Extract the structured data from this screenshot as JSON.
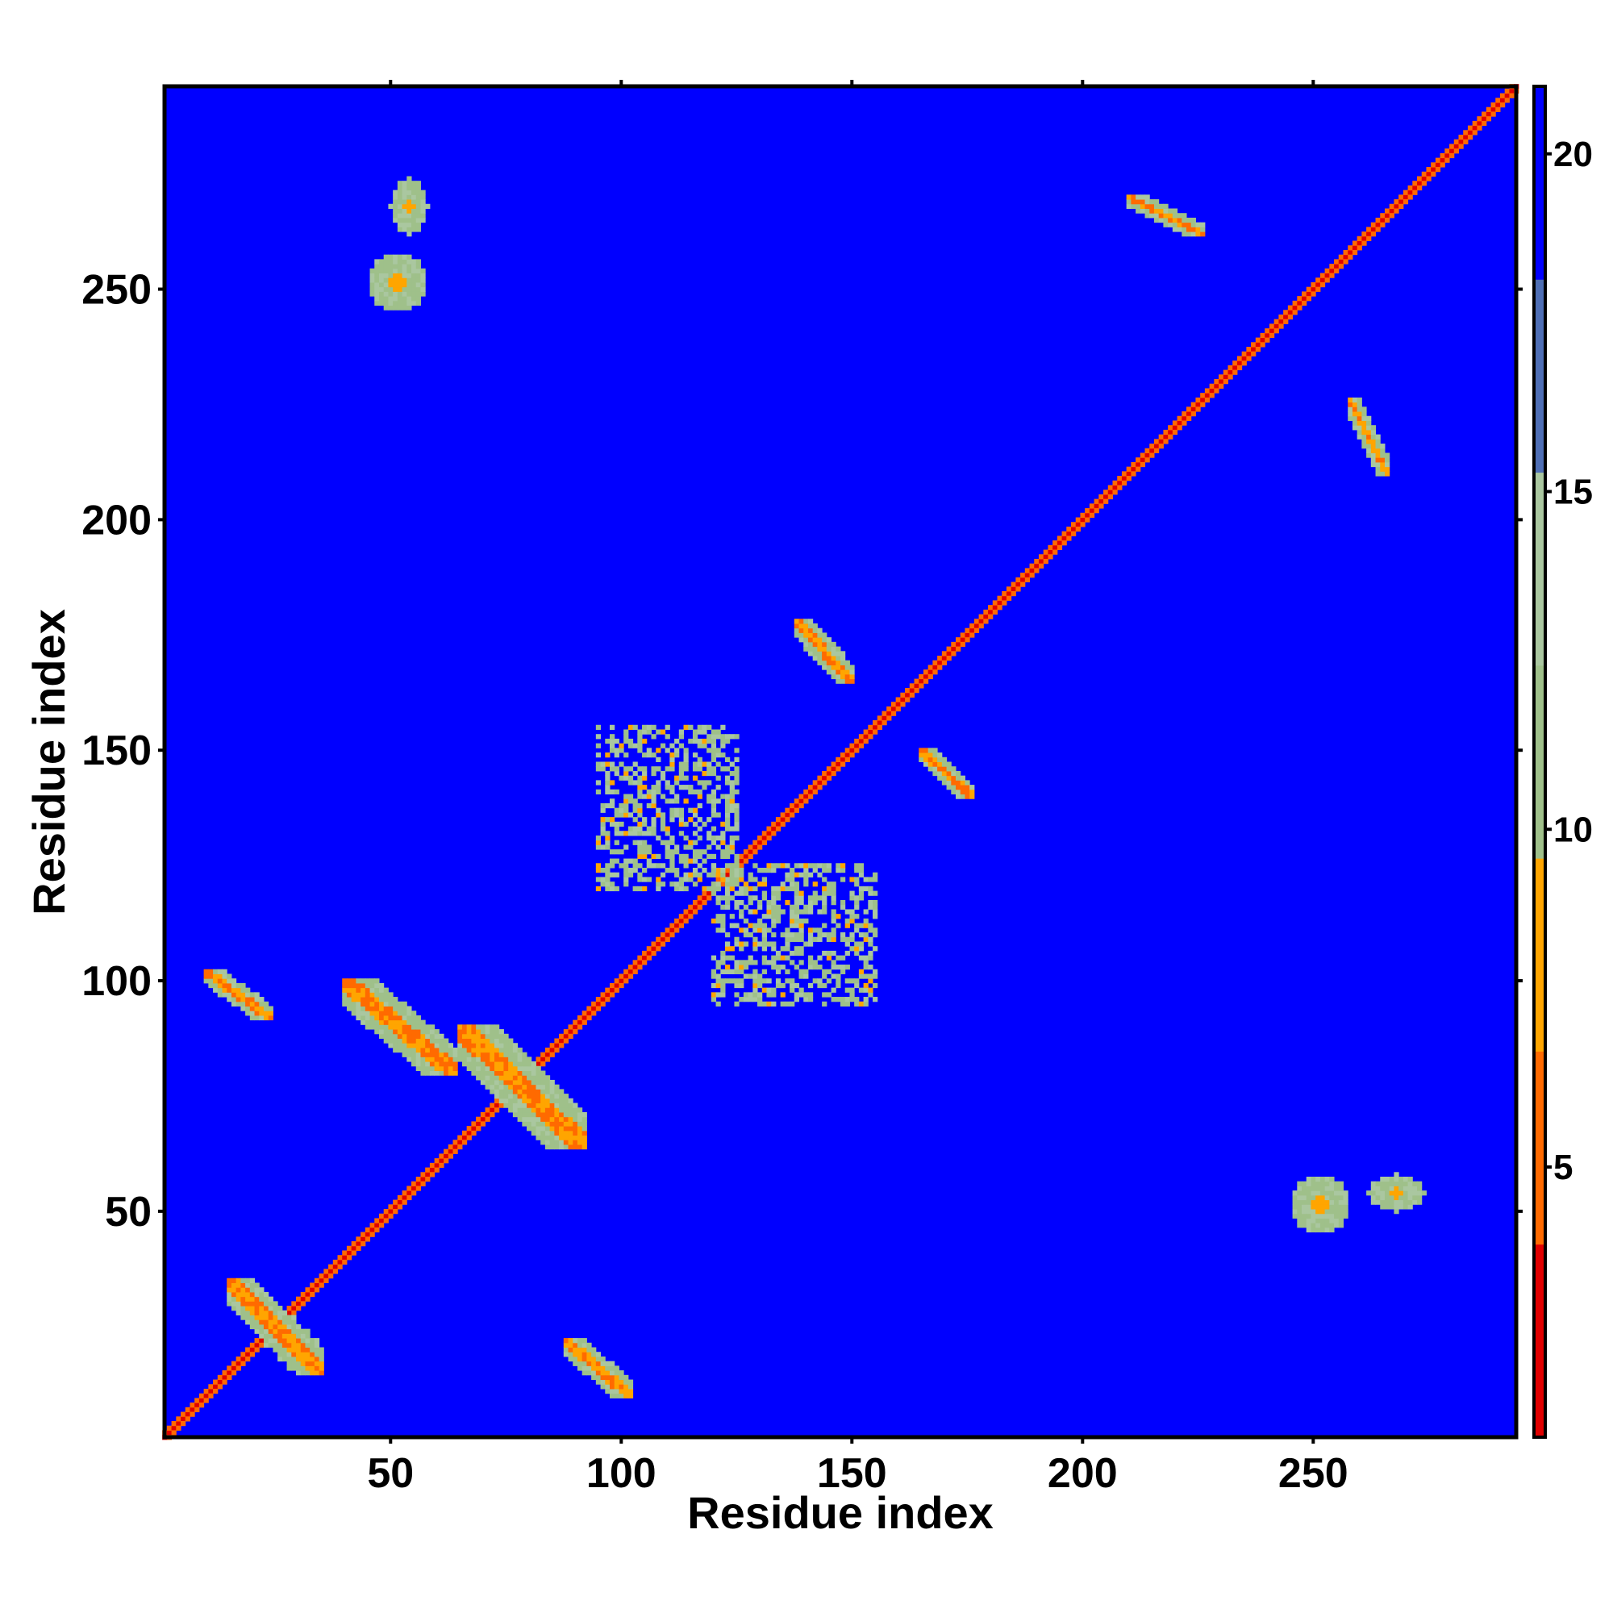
{
  "chart_data": {
    "type": "heatmap",
    "title": "",
    "xlabel": "Residue index",
    "ylabel": "Residue index",
    "xlim": [
      1,
      294
    ],
    "ylim": [
      1,
      294
    ],
    "x_ticks": [
      50,
      100,
      150,
      200,
      250
    ],
    "y_ticks": [
      50,
      100,
      150,
      200,
      250
    ],
    "colorbar": {
      "range": [
        1,
        21
      ],
      "ticks": [
        5,
        10,
        15,
        20
      ],
      "colors": [
        "#e00000",
        "#ff6a00",
        "#ffa500",
        "#9fc08a",
        "#aac7a0",
        "#4f6fb5",
        "#0000ff"
      ]
    },
    "description_values": {
      "diagonal_distance": 1,
      "background_distance": 21
    },
    "contact_regions": [
      {
        "x": [
          1,
          294
        ],
        "y": [
          1,
          294
        ],
        "kind": "diagonal"
      },
      {
        "x": [
          40,
          64
        ],
        "y": [
          80,
          100
        ],
        "kind": "antidiagonal"
      },
      {
        "x": [
          10,
          24
        ],
        "y": [
          92,
          102
        ],
        "kind": "antidiagonal"
      },
      {
        "x": [
          65,
          92
        ],
        "y": [
          64,
          90
        ],
        "kind": "antidiagonal"
      },
      {
        "x": [
          88,
          102
        ],
        "y": [
          10,
          22
        ],
        "kind": "antidiagonal"
      },
      {
        "x": [
          15,
          35
        ],
        "y": [
          15,
          35
        ],
        "kind": "antidiagonal"
      },
      {
        "x": [
          138,
          150
        ],
        "y": [
          165,
          178
        ],
        "kind": "antidiagonal"
      },
      {
        "x": [
          165,
          176
        ],
        "y": [
          140,
          150
        ],
        "kind": "antidiagonal"
      },
      {
        "x": [
          210,
          226
        ],
        "y": [
          262,
          270
        ],
        "kind": "antidiagonal"
      },
      {
        "x": [
          258,
          266
        ],
        "y": [
          210,
          226
        ],
        "kind": "antidiagonal"
      },
      {
        "x": [
          45,
          58
        ],
        "y": [
          245,
          258
        ],
        "kind": "blob"
      },
      {
        "x": [
          245,
          258
        ],
        "y": [
          45,
          58
        ],
        "kind": "blob"
      },
      {
        "x": [
          262,
          274
        ],
        "y": [
          50,
          58
        ],
        "kind": "blob"
      },
      {
        "x": [
          50,
          58
        ],
        "y": [
          262,
          274
        ],
        "kind": "blob"
      },
      {
        "x": [
          95,
          125
        ],
        "y": [
          120,
          155
        ],
        "kind": "arc"
      },
      {
        "x": [
          120,
          155
        ],
        "y": [
          95,
          125
        ],
        "kind": "arc"
      }
    ]
  }
}
